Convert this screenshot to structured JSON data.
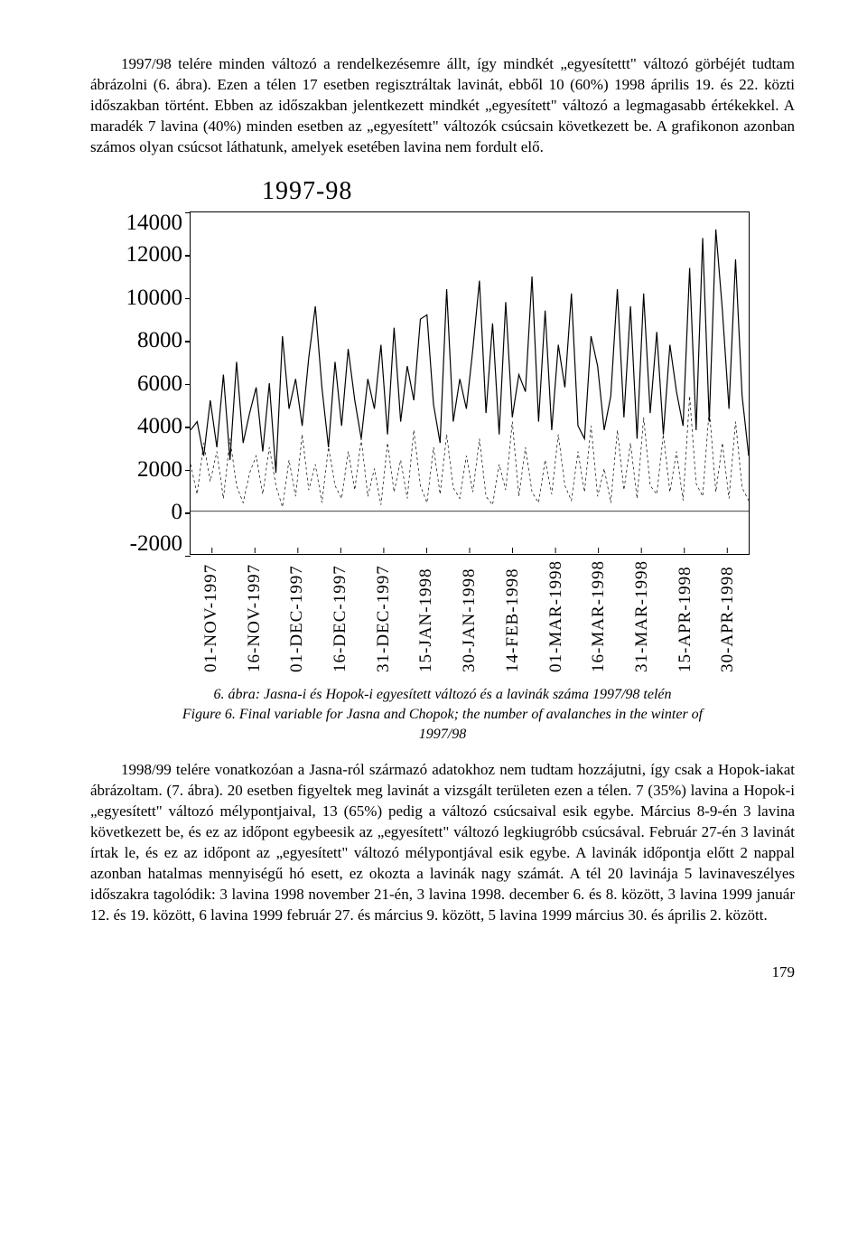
{
  "para1": "1997/98 telére minden változó a rendelkezésemre állt, így mindkét „egyesítettt\" változó görbéjét tudtam ábrázolni (6. ábra). Ezen a télen 17 esetben regisztráltak lavinát, ebből 10 (60%) 1998 április 19. és 22. közti időszakban történt. Ebben az időszakban jelentkezett mindkét „egyesített\" változó a legmagasabb értékekkel. A maradék 7 lavina (40%) minden esetben az „egyesített\" változók csúcsain következett be. A grafikonon azonban számos olyan csúcsot láthatunk, amelyek esetében lavina nem fordult elő.",
  "chart": {
    "type": "line",
    "title": "1997-98",
    "background_color": "#ffffff",
    "axis_color": "#000000",
    "stroke_width_main": 1.2,
    "stroke_width_sec": 0.7,
    "ylim": [
      -2000,
      14000
    ],
    "ytick_step": 2000,
    "yticks": [
      14000,
      12000,
      10000,
      8000,
      6000,
      4000,
      2000,
      0,
      -2000
    ],
    "xlabels": [
      "01-NOV-1997",
      "16-NOV-1997",
      "01-DEC-1997",
      "16-DEC-1997",
      "31-DEC-1997",
      "15-JAN-1998",
      "30-JAN-1998",
      "14-FEB-1998",
      "01-MAR-1998",
      "16-MAR-1998",
      "31-MAR-1998",
      "15-APR-1998",
      "30-APR-1998"
    ],
    "series1_color": "#000000",
    "series2_color": "#000000",
    "series1_style": "solid",
    "series2_style": "dashed",
    "series1": [
      3800,
      4200,
      2600,
      5200,
      3000,
      6400,
      2400,
      7000,
      3200,
      4600,
      5800,
      2800,
      6000,
      1800,
      8200,
      4800,
      6200,
      4000,
      7200,
      9600,
      5800,
      3000,
      7000,
      4000,
      7600,
      5200,
      3400,
      6200,
      4800,
      7800,
      3600,
      8600,
      4200,
      6800,
      5200,
      9000,
      9200,
      5000,
      3200,
      10400,
      4200,
      6200,
      4800,
      7600,
      10800,
      4600,
      8800,
      3600,
      9800,
      4400,
      6400,
      5600,
      11000,
      4200,
      9400,
      3800,
      7800,
      5800,
      10200,
      4000,
      3400,
      8200,
      6800,
      3800,
      5400,
      10400,
      4400,
      9600,
      3400,
      10200,
      4600,
      8400,
      3600,
      7800,
      5600,
      4000,
      11400,
      3800,
      12800,
      4200,
      13200,
      9400,
      4800,
      11800,
      5400,
      2600
    ],
    "series2": [
      2200,
      800,
      3200,
      1400,
      2800,
      600,
      3400,
      1200,
      400,
      1800,
      2600,
      800,
      3000,
      1200,
      200,
      2400,
      700,
      3600,
      1000,
      2200,
      400,
      3000,
      1200,
      600,
      2800,
      1000,
      3400,
      700,
      2000,
      300,
      3200,
      900,
      2400,
      600,
      3800,
      1200,
      400,
      3000,
      800,
      3600,
      1100,
      600,
      2600,
      900,
      3400,
      700,
      300,
      2200,
      1000,
      4200,
      700,
      3000,
      900,
      400,
      2400,
      800,
      3600,
      1200,
      500,
      2800,
      900,
      4000,
      700,
      2000,
      400,
      3800,
      1000,
      3200,
      600,
      4400,
      1200,
      800,
      3600,
      900,
      2800,
      500,
      5400,
      1300,
      700,
      4800,
      900,
      3200,
      600,
      4200,
      1100,
      500
    ]
  },
  "caption_line1": "6. ábra: Jasna-i és Hopok-i egyesített változó és a lavinák száma 1997/98 telén",
  "caption_line2": "Figure 6. Final variable for Jasna and Chopok; the number of avalanches in the winter of",
  "caption_line3": "1997/98",
  "para2": "1998/99 telére vonatkozóan a Jasna-ról származó adatokhoz nem tudtam hozzájutni, így csak a Hopok-iakat ábrázoltam. (7. ábra). 20 esetben figyeltek meg lavinát a vizsgált területen ezen a télen. 7 (35%) lavina a Hopok-i „egyesített\" változó mélypontjaival, 13 (65%) pedig a változó csúcsaival esik egybe. Március 8-9-én 3 lavina következett be, és ez az időpont egybeesik az „egyesített\" változó legkiugróbb csúcsával. Február 27-én 3 lavinát írtak le, és ez az időpont az „egyesített\" változó mélypontjával esik egybe. A lavinák időpontja előtt 2 nappal azonban hatalmas mennyiségű hó esett, ez okozta a lavinák nagy számát. A tél 20 lavinája 5 lavinaveszélyes időszakra tagolódik: 3 lavina 1998 november 21-én, 3 lavina 1998. december 6. és 8. között, 3 lavina 1999 január 12. és 19. között, 6 lavina 1999 február 27. és március 9. között, 5 lavina 1999 március 30. és április 2. között.",
  "page_num": "179"
}
